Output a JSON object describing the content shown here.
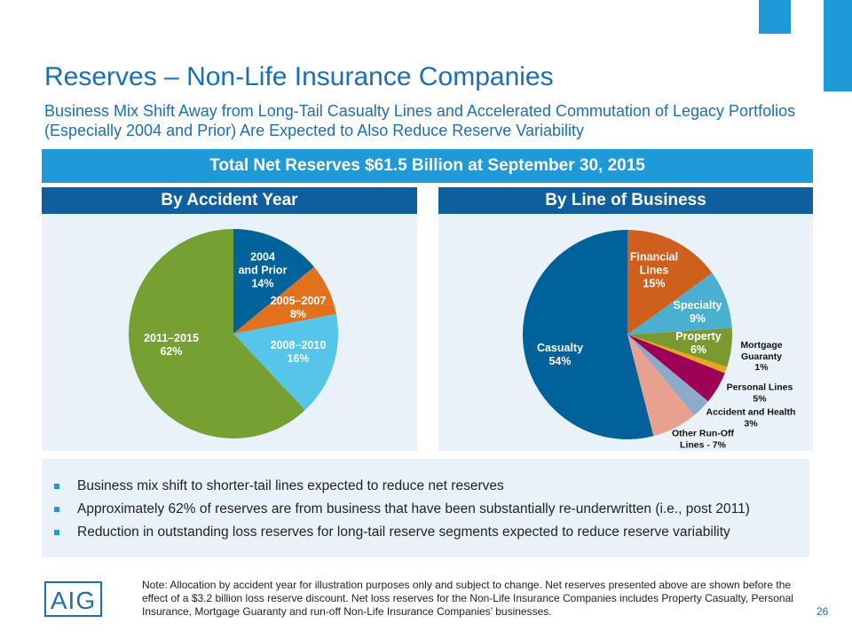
{
  "title": "Reserves – Non-Life Insurance Companies",
  "subtitle": "Business Mix Shift Away from Long-Tail Casualty Lines and Accelerated Commutation of Legacy Portfolios (Especially 2004 and Prior) Are Expected to Also Reduce Reserve Variability",
  "banner": "Total Net Reserves $61.5 Billion at September 30, 2015",
  "chart_data": [
    {
      "type": "pie",
      "title": "By Accident Year",
      "categories": [
        "2004\nand Prior",
        "2005–2007",
        "2008–2010",
        "2011–2015"
      ],
      "values": [
        14,
        8,
        16,
        62
      ],
      "value_labels": [
        "14%",
        "8%",
        "16%",
        "62%"
      ],
      "colors": [
        "#00649b",
        "#e2711d",
        "#55c6ea",
        "#77a033"
      ]
    },
    {
      "type": "pie",
      "title": "By Line of Business",
      "categories": [
        "Financial\nLines",
        "Specialty",
        "Property",
        "Mortgage\nGuaranty",
        "Personal  Lines",
        "Accident  and Health",
        "Other Run-Off\nLines - 7%",
        "Casualty"
      ],
      "values": [
        15,
        9,
        6,
        1,
        5,
        3,
        7,
        54
      ],
      "value_labels": [
        "15%",
        "9%",
        "6%",
        "1%",
        "5%",
        "3%",
        null,
        "54%"
      ],
      "colors": [
        "#cf5f1c",
        "#4bafd0",
        "#7a9a2f",
        "#e9a51b",
        "#9e0058",
        "#8eaacb",
        "#e9a08e",
        "#00629a"
      ]
    }
  ],
  "bullets": [
    "Business mix shift to shorter-tail lines expected to reduce net reserves",
    "Approximately 62% of reserves are from business that have been substantially re-underwritten (i.e., post 2011)",
    "Reduction in outstanding loss reserves for long-tail reserve segments expected to reduce reserve variability"
  ],
  "note": "Note: Allocation by accident year for illustration purposes only and subject to change. Net reserves presented above are shown before the effect of a $3.2 billion loss reserve discount. Net loss reserves for the Non-Life Insurance Companies includes Property Casualty, Personal Insurance, Mortgage Guaranty and run-off Non-Life Insurance Companies’ businesses.",
  "logo": "AIG",
  "page_number": "26"
}
